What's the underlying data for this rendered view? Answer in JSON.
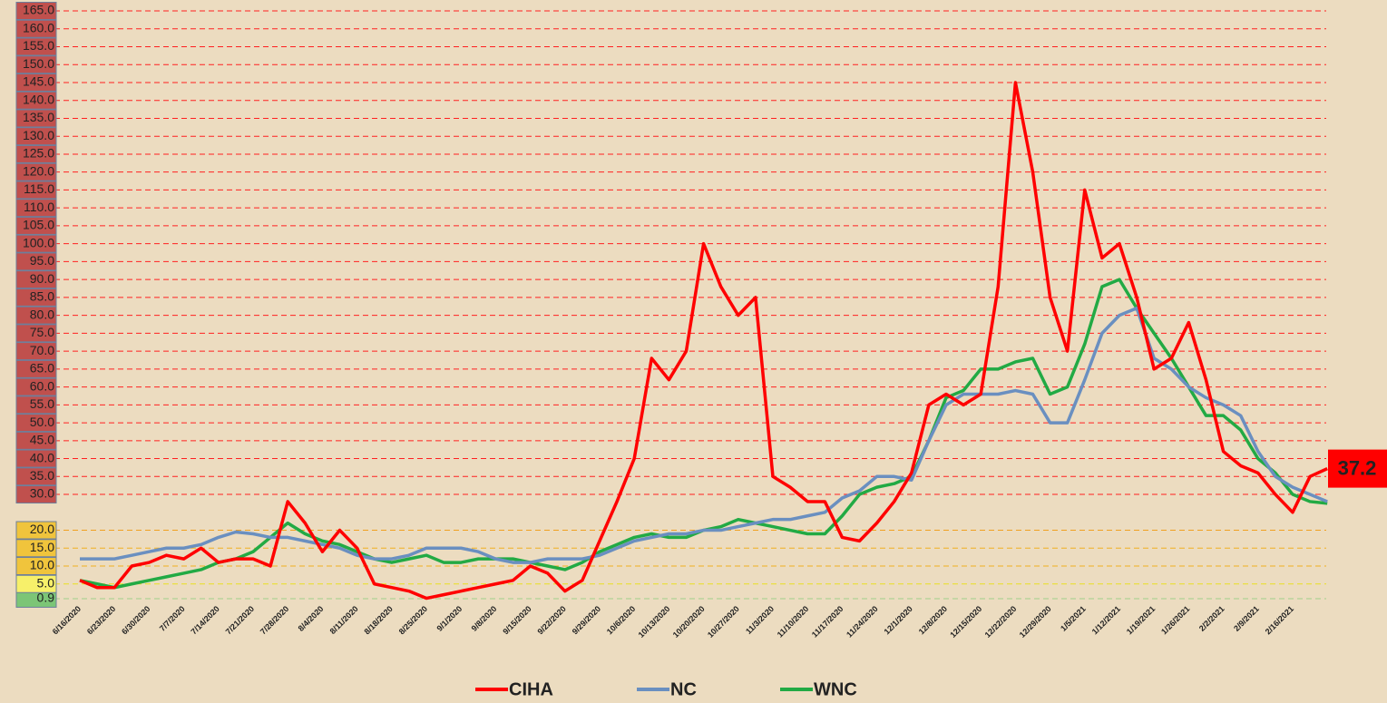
{
  "chart_data": {
    "type": "line",
    "categories": [
      "6/16/2020",
      null,
      "6/23/2020",
      null,
      "6/30/2020",
      null,
      "7/7/2020",
      null,
      "7/14/2020",
      null,
      "7/21/2020",
      null,
      "7/28/2020",
      null,
      "8/4/2020",
      null,
      "8/11/2020",
      null,
      "8/18/2020",
      null,
      "8/25/2020",
      null,
      "9/1/2020",
      null,
      "9/8/2020",
      null,
      "9/15/2020",
      null,
      "9/22/2020",
      null,
      "9/29/2020",
      null,
      "10/6/2020",
      null,
      "10/13/2020",
      null,
      "10/20/2020",
      null,
      "10/27/2020",
      null,
      "11/3/2020",
      null,
      "11/10/2020",
      null,
      "11/17/2020",
      null,
      "11/24/2020",
      null,
      "12/1/2020",
      null,
      "12/8/2020",
      null,
      "12/15/2020",
      null,
      "12/22/2020",
      null,
      "12/29/2020",
      null,
      "1/5/2021",
      null,
      "1/12/2021",
      null,
      "1/19/2021",
      null,
      "1/26/2021",
      null,
      "2/2/2021",
      null,
      "2/9/2021",
      null,
      "2/16/2021",
      null,
      null
    ],
    "series": [
      {
        "name": "CIHA",
        "color": "#ff0000",
        "values": [
          6,
          4,
          4,
          10,
          11,
          13,
          12,
          15,
          11,
          12,
          12,
          10,
          28,
          22,
          14,
          20,
          15,
          5,
          4,
          3,
          1,
          2,
          3,
          4,
          5,
          6,
          10,
          8,
          3,
          6,
          17,
          28,
          40,
          68,
          62,
          70,
          100,
          88,
          80,
          85,
          35,
          32,
          28,
          28,
          18,
          17,
          22,
          28,
          36,
          55,
          58,
          55,
          58,
          88,
          145,
          120,
          85,
          70,
          115,
          96,
          100,
          85,
          65,
          68,
          78,
          62,
          42,
          38,
          36,
          30,
          25,
          35,
          37.2
        ]
      },
      {
        "name": "NC",
        "color": "#6a8fc0",
        "values": [
          12,
          12,
          12,
          13,
          14,
          15,
          15,
          16,
          18,
          19.5,
          19,
          18,
          18,
          17,
          16,
          15,
          13,
          12,
          12,
          13,
          15,
          15,
          15,
          14,
          12,
          11,
          11,
          12,
          12,
          12,
          13,
          15,
          17,
          18,
          19,
          19,
          20,
          20,
          21,
          22,
          23,
          23,
          24,
          25,
          29,
          31,
          35,
          35,
          34,
          45,
          55,
          58,
          58,
          58,
          59,
          58,
          50,
          50,
          62,
          75,
          80,
          82,
          68,
          65,
          60,
          57,
          55,
          52,
          42,
          35,
          32,
          30,
          28
        ]
      },
      {
        "name": "WNC",
        "color": "#22aa44",
        "values": [
          6,
          5,
          4,
          5,
          6,
          7,
          8,
          9,
          11,
          12,
          14,
          18,
          22,
          19,
          17,
          16,
          14,
          12,
          11,
          12,
          13,
          11,
          11,
          12,
          12,
          12,
          11,
          10,
          9,
          11,
          14,
          16,
          18,
          19,
          18,
          18,
          20,
          21,
          23,
          22,
          21,
          20,
          19,
          19,
          24,
          30,
          32,
          33,
          35,
          45,
          57,
          59,
          65,
          65,
          67,
          68,
          58,
          60,
          72,
          88,
          90,
          82,
          75,
          68,
          60,
          52,
          52,
          48,
          40,
          36,
          30,
          28,
          27.5
        ]
      }
    ],
    "annotation": "37.2",
    "ylim": [
      0,
      165
    ],
    "yticks": [
      0.9,
      {
        "value": 5,
        "label": "5.0"
      },
      {
        "value": 10,
        "label": "10.0"
      },
      {
        "value": 15,
        "label": "15.0"
      },
      {
        "value": 20,
        "label": "20.0"
      },
      {
        "value": 30,
        "label": "30.0"
      },
      {
        "value": 35,
        "label": "35.0"
      },
      {
        "value": 40,
        "label": "40.0"
      },
      {
        "value": 45,
        "label": "45.0"
      },
      {
        "value": 50,
        "label": "50.0"
      },
      {
        "value": 55,
        "label": "55.0"
      },
      {
        "value": 60,
        "label": "60.0"
      },
      {
        "value": 65,
        "label": "65.0"
      },
      {
        "value": 70,
        "label": "70.0"
      },
      {
        "value": 75,
        "label": "75.0"
      },
      {
        "value": 80,
        "label": "80.0"
      },
      {
        "value": 85,
        "label": "85.0"
      },
      {
        "value": 90,
        "label": "90.0"
      },
      {
        "value": 95,
        "label": "95.0"
      },
      {
        "value": 100,
        "label": "100.0"
      },
      {
        "value": 105,
        "label": "105.0"
      },
      {
        "value": 110,
        "label": "110.0"
      },
      {
        "value": 115,
        "label": "115.0"
      },
      {
        "value": 120,
        "label": "120.0"
      },
      {
        "value": 125,
        "label": "125.0"
      },
      {
        "value": 130,
        "label": "130.0"
      },
      {
        "value": 135,
        "label": "135.0"
      },
      {
        "value": 140,
        "label": "140.0"
      },
      {
        "value": 145,
        "label": "145.0"
      },
      {
        "value": 150,
        "label": "150.0"
      },
      {
        "value": 155,
        "label": "155.0"
      },
      {
        "value": 160,
        "label": "160.0"
      },
      {
        "value": 165,
        "label": "165.0"
      }
    ],
    "ytick_colors": [
      "#7cc576",
      "#f7f06a",
      "#f0c43c",
      "#f0c43c",
      "#f0c43c",
      "#c0504d",
      "#c0504d",
      "#c0504d",
      "#c0504d",
      "#c0504d",
      "#c0504d",
      "#c0504d",
      "#c0504d",
      "#c0504d",
      "#c0504d",
      "#c0504d",
      "#c0504d",
      "#c0504d",
      "#c0504d",
      "#c0504d",
      "#c0504d",
      "#c0504d",
      "#c0504d",
      "#c0504d",
      "#c0504d",
      "#c0504d",
      "#c0504d",
      "#c0504d",
      "#c0504d",
      "#c0504d",
      "#c0504d",
      "#c0504d",
      "#c0504d"
    ],
    "grid_colors": [
      "#9fd08a",
      "#e8e020",
      "#f0b020",
      "#f0b020",
      "#f0a020",
      "#ff2020",
      "#ff2020",
      "#ff2020",
      "#ff2020",
      "#ff2020",
      "#ff2020",
      "#ff2020",
      "#ff2020",
      "#ff2020",
      "#ff2020",
      "#ff2020",
      "#ff2020",
      "#ff2020",
      "#ff2020",
      "#ff2020",
      "#ff2020",
      "#ff2020",
      "#ff2020",
      "#ff2020",
      "#ff2020",
      "#ff2020",
      "#ff2020",
      "#ff2020",
      "#ff2020",
      "#ff2020",
      "#ff2020",
      "#ff2020",
      "#ff2020"
    ],
    "grid": true,
    "legend": "bottom"
  }
}
